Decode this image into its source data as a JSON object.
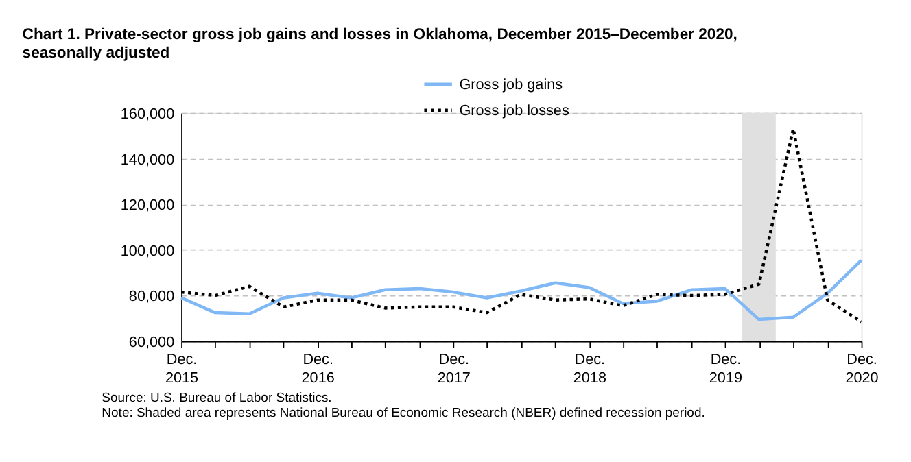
{
  "chart_data": {
    "type": "line",
    "title": "Chart 1. Private-sector gross job gains and losses in Oklahoma, December 2015–December 2020,\nseasonally adjusted",
    "x": [
      "2015-12",
      "2016-03",
      "2016-06",
      "2016-09",
      "2016-12",
      "2017-03",
      "2017-06",
      "2017-09",
      "2017-12",
      "2018-03",
      "2018-06",
      "2018-09",
      "2018-12",
      "2019-03",
      "2019-06",
      "2019-09",
      "2019-12",
      "2020-03",
      "2020-06",
      "2020-09",
      "2020-12"
    ],
    "series": [
      {
        "name": "Gross job gains",
        "color": "#7fb8f5",
        "line_style": "solid",
        "values": [
          79000,
          72500,
          72000,
          79000,
          81000,
          79000,
          82500,
          83000,
          81500,
          79000,
          82000,
          85500,
          83500,
          76500,
          77500,
          82500,
          83000,
          69500,
          70500,
          81000,
          95500
        ]
      },
      {
        "name": "Gross job losses",
        "color": "#000000",
        "line_style": "dotted",
        "values": [
          81500,
          80000,
          84000,
          75000,
          78000,
          78000,
          74500,
          75000,
          75000,
          72500,
          80500,
          78000,
          78500,
          75500,
          80500,
          80000,
          80500,
          85000,
          153000,
          78000,
          68500
        ]
      }
    ],
    "xlim": [
      "2015-12",
      "2020-12"
    ],
    "xticks": [
      {
        "value": "2015-12",
        "label": "Dec.\n2015"
      },
      {
        "value": "2016-03",
        "label": null
      },
      {
        "value": "2016-06",
        "label": null
      },
      {
        "value": "2016-09",
        "label": null
      },
      {
        "value": "2016-12",
        "label": "Dec.\n2016"
      },
      {
        "value": "2017-03",
        "label": null
      },
      {
        "value": "2017-06",
        "label": null
      },
      {
        "value": "2017-09",
        "label": null
      },
      {
        "value": "2017-12",
        "label": "Dec.\n2017"
      },
      {
        "value": "2018-03",
        "label": null
      },
      {
        "value": "2018-06",
        "label": null
      },
      {
        "value": "2018-09",
        "label": null
      },
      {
        "value": "2018-12",
        "label": "Dec.\n2018"
      },
      {
        "value": "2019-03",
        "label": null
      },
      {
        "value": "2019-06",
        "label": null
      },
      {
        "value": "2019-09",
        "label": null
      },
      {
        "value": "2019-12",
        "label": "Dec.\n2019"
      },
      {
        "value": "2020-03",
        "label": null
      },
      {
        "value": "2020-06",
        "label": null
      },
      {
        "value": "2020-09",
        "label": null
      },
      {
        "value": "2020-12",
        "label": "Dec.\n2020"
      }
    ],
    "ylim": [
      60000,
      160000
    ],
    "yticks": [
      {
        "value": 60000,
        "label": "60,000"
      },
      {
        "value": 80000,
        "label": "80,000"
      },
      {
        "value": 100000,
        "label": "100,000"
      },
      {
        "value": 120000,
        "label": "120,000"
      },
      {
        "value": 140000,
        "label": "140,000"
      },
      {
        "value": 160000,
        "label": "160,000"
      }
    ],
    "bands": [
      {
        "axis": "x",
        "from": "2020-01-15",
        "to": "2020-04-15",
        "color": "#e0e0e0"
      }
    ],
    "grid": "y",
    "legend": "top",
    "marker": "none",
    "annotations": [
      "Source: U.S. Bureau of Labor Statistics.",
      "Note: Shaded area represents National Bureau of Economic Research (NBER) defined recession period."
    ]
  }
}
